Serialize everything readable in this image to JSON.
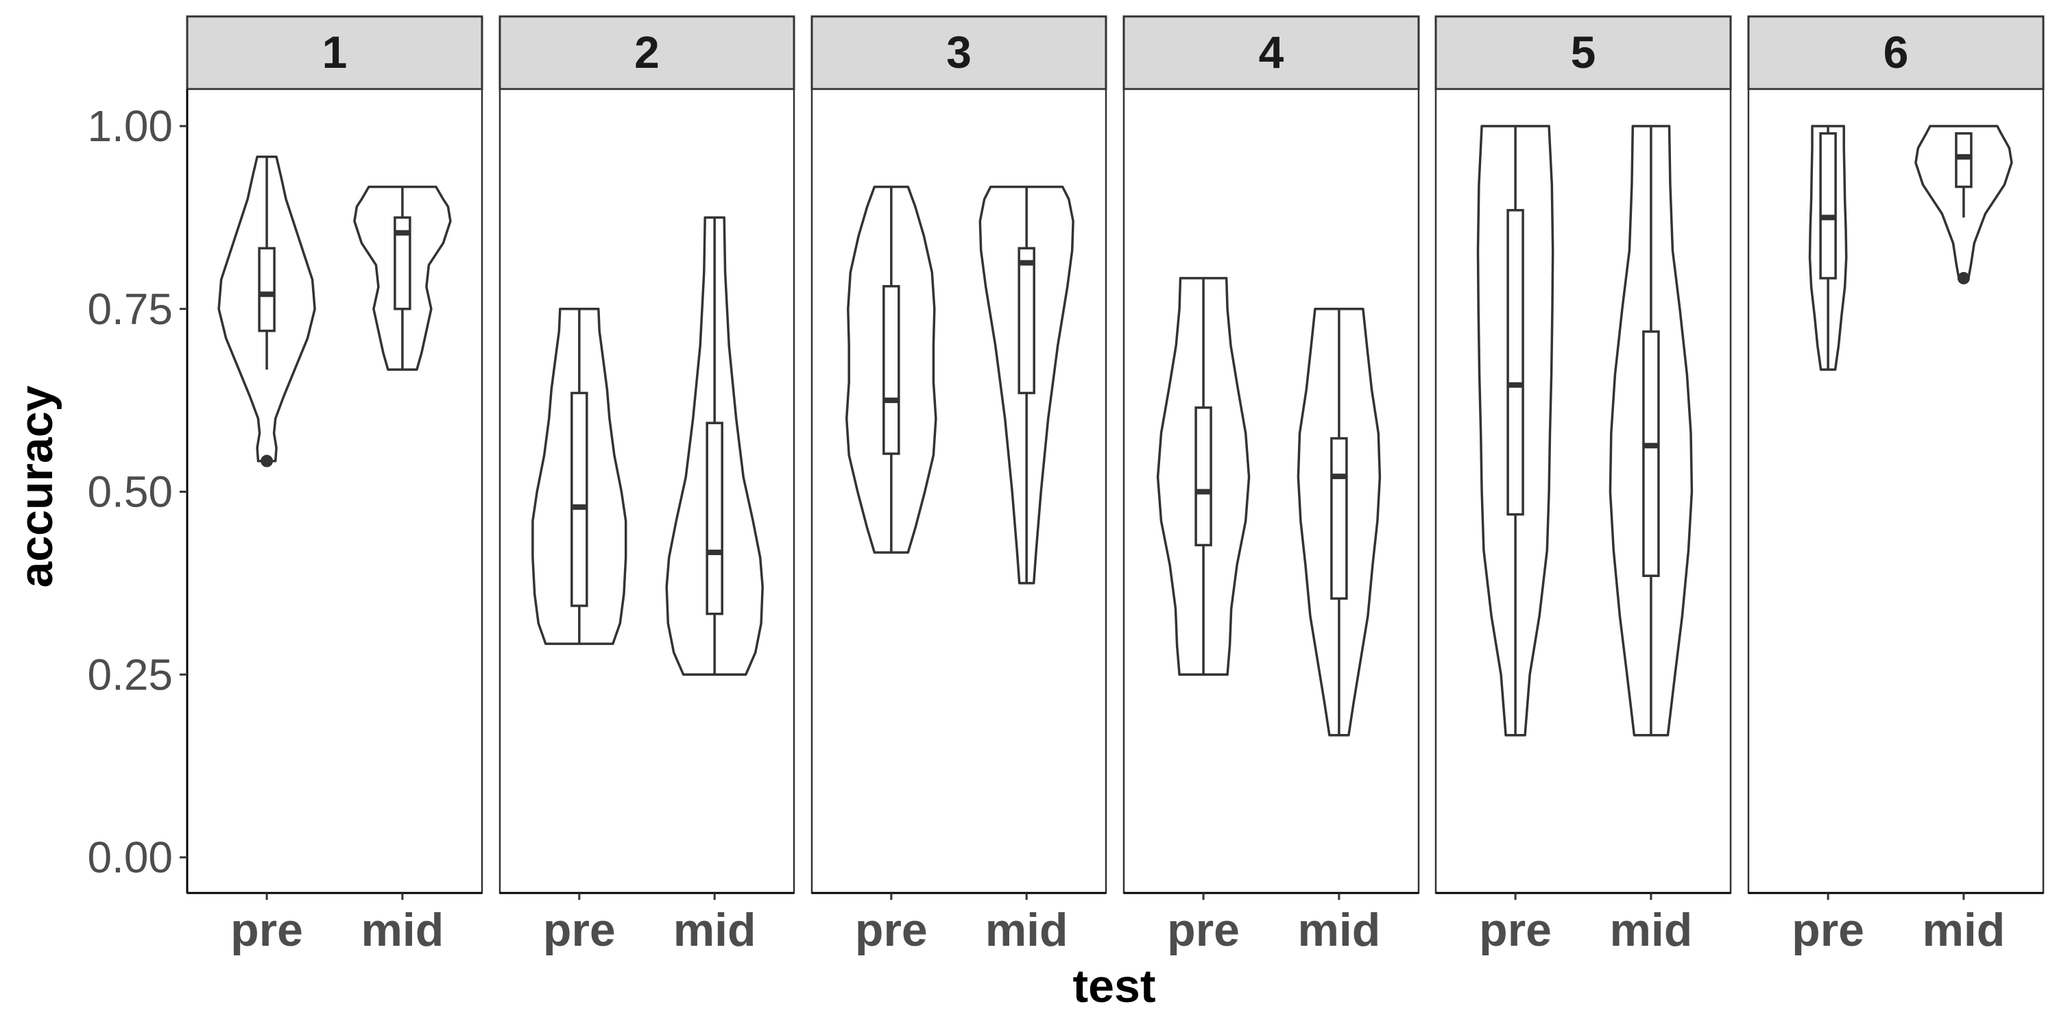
{
  "chart_data": {
    "type": "violin",
    "facet_labels": [
      "1",
      "2",
      "3",
      "4",
      "5",
      "6"
    ],
    "categories": [
      "pre",
      "mid"
    ],
    "xlabel": "test",
    "ylabel": "accuracy",
    "ylim": [
      -0.05,
      1.05
    ],
    "yticks": [
      0.0,
      0.25,
      0.5,
      0.75,
      1.0
    ],
    "ytick_labels": [
      "0.00",
      "0.25",
      "0.50",
      "0.75",
      "1.00"
    ],
    "grid": false,
    "panels": [
      {
        "facet": "1",
        "groups": [
          {
            "test": "pre",
            "min": 0.542,
            "max": 0.958,
            "whisker_low": 0.667,
            "q1": 0.72,
            "median": 0.77,
            "q3": 0.833,
            "whisker_high": 0.958,
            "outliers": [
              0.542
            ],
            "density": [
              [
                0.542,
                0.18
              ],
              [
                0.56,
                0.2
              ],
              [
                0.58,
                0.15
              ],
              [
                0.6,
                0.18
              ],
              [
                0.63,
                0.35
              ],
              [
                0.67,
                0.6
              ],
              [
                0.71,
                0.85
              ],
              [
                0.75,
                1.0
              ],
              [
                0.79,
                0.95
              ],
              [
                0.83,
                0.75
              ],
              [
                0.87,
                0.55
              ],
              [
                0.9,
                0.4
              ],
              [
                0.93,
                0.3
              ],
              [
                0.958,
                0.2
              ]
            ]
          },
          {
            "test": "mid",
            "min": 0.667,
            "max": 0.917,
            "whisker_low": 0.667,
            "q1": 0.75,
            "median": 0.854,
            "q3": 0.875,
            "whisker_high": 0.917,
            "outliers": [],
            "density": [
              [
                0.667,
                0.3
              ],
              [
                0.69,
                0.4
              ],
              [
                0.72,
                0.5
              ],
              [
                0.75,
                0.6
              ],
              [
                0.78,
                0.5
              ],
              [
                0.81,
                0.55
              ],
              [
                0.84,
                0.85
              ],
              [
                0.87,
                1.0
              ],
              [
                0.89,
                0.95
              ],
              [
                0.9,
                0.85
              ],
              [
                0.917,
                0.7
              ]
            ]
          }
        ]
      },
      {
        "facet": "2",
        "groups": [
          {
            "test": "pre",
            "min": 0.292,
            "max": 0.75,
            "whisker_low": 0.292,
            "q1": 0.344,
            "median": 0.479,
            "q3": 0.635,
            "whisker_high": 0.75,
            "outliers": [],
            "density": [
              [
                0.292,
                0.7
              ],
              [
                0.32,
                0.85
              ],
              [
                0.36,
                0.93
              ],
              [
                0.41,
                0.97
              ],
              [
                0.46,
                0.97
              ],
              [
                0.5,
                0.88
              ],
              [
                0.55,
                0.73
              ],
              [
                0.6,
                0.63
              ],
              [
                0.64,
                0.58
              ],
              [
                0.68,
                0.5
              ],
              [
                0.72,
                0.42
              ],
              [
                0.75,
                0.4
              ]
            ]
          },
          {
            "test": "mid",
            "min": 0.25,
            "max": 0.875,
            "whisker_low": 0.25,
            "q1": 0.333,
            "median": 0.417,
            "q3": 0.594,
            "whisker_high": 0.875,
            "outliers": [],
            "density": [
              [
                0.25,
                0.65
              ],
              [
                0.28,
                0.85
              ],
              [
                0.32,
                0.97
              ],
              [
                0.37,
                1.0
              ],
              [
                0.41,
                0.95
              ],
              [
                0.46,
                0.8
              ],
              [
                0.52,
                0.6
              ],
              [
                0.6,
                0.45
              ],
              [
                0.7,
                0.3
              ],
              [
                0.8,
                0.22
              ],
              [
                0.875,
                0.2
              ]
            ]
          }
        ]
      },
      {
        "facet": "3",
        "groups": [
          {
            "test": "pre",
            "min": 0.417,
            "max": 0.917,
            "whisker_low": 0.417,
            "q1": 0.552,
            "median": 0.625,
            "q3": 0.781,
            "whisker_high": 0.917,
            "outliers": [],
            "density": [
              [
                0.417,
                0.35
              ],
              [
                0.45,
                0.5
              ],
              [
                0.5,
                0.7
              ],
              [
                0.55,
                0.88
              ],
              [
                0.6,
                0.93
              ],
              [
                0.65,
                0.88
              ],
              [
                0.7,
                0.88
              ],
              [
                0.75,
                0.9
              ],
              [
                0.8,
                0.85
              ],
              [
                0.85,
                0.68
              ],
              [
                0.89,
                0.5
              ],
              [
                0.917,
                0.35
              ]
            ]
          },
          {
            "test": "mid",
            "min": 0.375,
            "max": 0.917,
            "whisker_low": 0.375,
            "q1": 0.635,
            "median": 0.813,
            "q3": 0.833,
            "whisker_high": 0.917,
            "outliers": [],
            "density": [
              [
                0.375,
                0.15
              ],
              [
                0.42,
                0.2
              ],
              [
                0.5,
                0.3
              ],
              [
                0.6,
                0.45
              ],
              [
                0.7,
                0.65
              ],
              [
                0.78,
                0.85
              ],
              [
                0.83,
                0.95
              ],
              [
                0.87,
                0.97
              ],
              [
                0.9,
                0.88
              ],
              [
                0.917,
                0.75
              ]
            ]
          }
        ]
      },
      {
        "facet": "4",
        "groups": [
          {
            "test": "pre",
            "min": 0.25,
            "max": 0.792,
            "whisker_low": 0.25,
            "q1": 0.427,
            "median": 0.5,
            "q3": 0.615,
            "whisker_high": 0.792,
            "outliers": [],
            "density": [
              [
                0.25,
                0.5
              ],
              [
                0.29,
                0.55
              ],
              [
                0.34,
                0.58
              ],
              [
                0.4,
                0.7
              ],
              [
                0.46,
                0.88
              ],
              [
                0.52,
                0.95
              ],
              [
                0.58,
                0.88
              ],
              [
                0.64,
                0.72
              ],
              [
                0.7,
                0.57
              ],
              [
                0.75,
                0.5
              ],
              [
                0.792,
                0.48
              ]
            ]
          },
          {
            "test": "mid",
            "min": 0.167,
            "max": 0.75,
            "whisker_low": 0.167,
            "q1": 0.354,
            "median": 0.521,
            "q3": 0.573,
            "whisker_high": 0.75,
            "outliers": [],
            "density": [
              [
                0.167,
                0.2
              ],
              [
                0.21,
                0.3
              ],
              [
                0.27,
                0.45
              ],
              [
                0.33,
                0.6
              ],
              [
                0.4,
                0.7
              ],
              [
                0.46,
                0.8
              ],
              [
                0.52,
                0.85
              ],
              [
                0.58,
                0.82
              ],
              [
                0.64,
                0.68
              ],
              [
                0.7,
                0.58
              ],
              [
                0.75,
                0.5
              ]
            ]
          }
        ]
      },
      {
        "facet": "5",
        "groups": [
          {
            "test": "pre",
            "min": 0.167,
            "max": 1.0,
            "whisker_low": 0.167,
            "q1": 0.469,
            "median": 0.646,
            "q3": 0.885,
            "whisker_high": 1.0,
            "outliers": [],
            "density": [
              [
                0.167,
                0.2
              ],
              [
                0.25,
                0.3
              ],
              [
                0.33,
                0.5
              ],
              [
                0.42,
                0.66
              ],
              [
                0.5,
                0.7
              ],
              [
                0.58,
                0.72
              ],
              [
                0.66,
                0.75
              ],
              [
                0.75,
                0.77
              ],
              [
                0.83,
                0.78
              ],
              [
                0.92,
                0.76
              ],
              [
                1.0,
                0.7
              ]
            ]
          },
          {
            "test": "mid",
            "min": 0.167,
            "max": 1.0,
            "whisker_low": 0.167,
            "q1": 0.385,
            "median": 0.563,
            "q3": 0.719,
            "whisker_high": 1.0,
            "outliers": [],
            "density": [
              [
                0.167,
                0.35
              ],
              [
                0.25,
                0.5
              ],
              [
                0.33,
                0.65
              ],
              [
                0.42,
                0.78
              ],
              [
                0.5,
                0.85
              ],
              [
                0.58,
                0.83
              ],
              [
                0.66,
                0.75
              ],
              [
                0.75,
                0.6
              ],
              [
                0.83,
                0.45
              ],
              [
                0.92,
                0.4
              ],
              [
                1.0,
                0.38
              ]
            ]
          }
        ]
      },
      {
        "facet": "6",
        "groups": [
          {
            "test": "pre",
            "min": 0.667,
            "max": 1.0,
            "whisker_low": 0.667,
            "q1": 0.792,
            "median": 0.875,
            "q3": 0.99,
            "whisker_high": 1.0,
            "outliers": [],
            "density": [
              [
                0.667,
                0.15
              ],
              [
                0.7,
                0.22
              ],
              [
                0.74,
                0.28
              ],
              [
                0.78,
                0.35
              ],
              [
                0.82,
                0.38
              ],
              [
                0.86,
                0.37
              ],
              [
                0.9,
                0.35
              ],
              [
                0.94,
                0.34
              ],
              [
                0.97,
                0.33
              ],
              [
                1.0,
                0.33
              ]
            ]
          },
          {
            "test": "mid",
            "min": 0.792,
            "max": 1.0,
            "whisker_low": 0.875,
            "q1": 0.917,
            "median": 0.958,
            "q3": 0.99,
            "whisker_high": 0.99,
            "outliers": [
              0.792
            ],
            "density": [
              [
                0.792,
                0.1
              ],
              [
                0.81,
                0.15
              ],
              [
                0.84,
                0.22
              ],
              [
                0.88,
                0.45
              ],
              [
                0.92,
                0.85
              ],
              [
                0.95,
                1.0
              ],
              [
                0.97,
                0.95
              ],
              [
                0.99,
                0.78
              ],
              [
                1.0,
                0.7
              ]
            ]
          }
        ]
      }
    ]
  }
}
